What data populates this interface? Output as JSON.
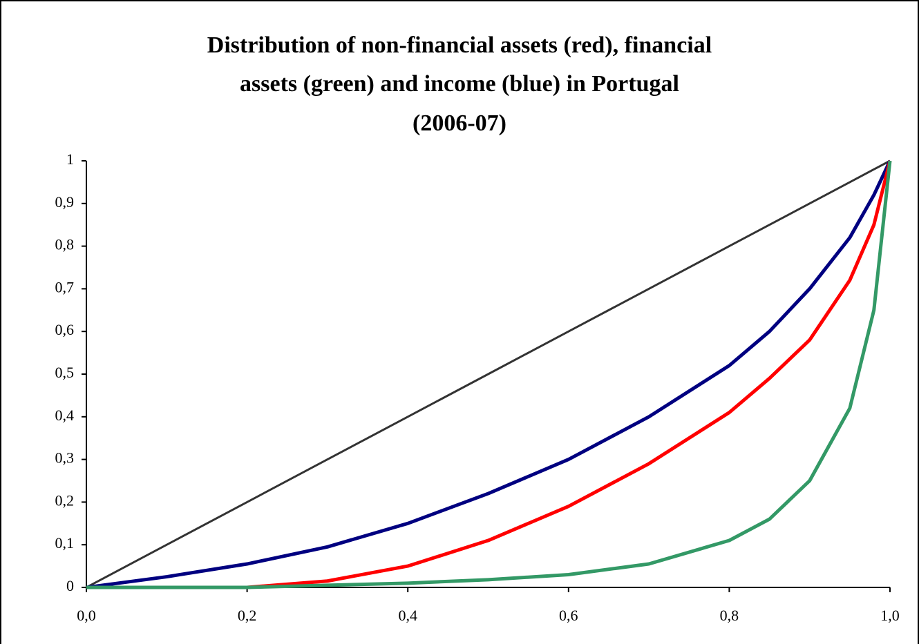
{
  "chart_data": {
    "type": "line",
    "title": [
      "Distribution of non-financial assets (red), financial",
      "assets (green) and income (blue) in Portugal",
      "(2006-07)"
    ],
    "x": [
      0,
      0.1,
      0.2,
      0.3,
      0.4,
      0.5,
      0.6,
      0.7,
      0.8,
      0.85,
      0.9,
      0.95,
      0.98,
      1.0
    ],
    "series": [
      {
        "color": "#333333",
        "values": [
          0,
          0.1,
          0.2,
          0.3,
          0.4,
          0.5,
          0.6,
          0.7,
          0.8,
          0.85,
          0.9,
          0.95,
          0.98,
          1.0
        ]
      },
      {
        "color": "#000080",
        "values": [
          0,
          0.025,
          0.055,
          0.095,
          0.15,
          0.22,
          0.3,
          0.4,
          0.52,
          0.6,
          0.7,
          0.82,
          0.92,
          1.0
        ]
      },
      {
        "color": "#ff0000",
        "values": [
          0,
          0,
          0,
          0.015,
          0.05,
          0.11,
          0.19,
          0.29,
          0.41,
          0.49,
          0.58,
          0.72,
          0.85,
          1.0
        ]
      },
      {
        "color": "#339966",
        "values": [
          0,
          0,
          0,
          0.005,
          0.01,
          0.018,
          0.03,
          0.055,
          0.11,
          0.16,
          0.25,
          0.42,
          0.65,
          1.0
        ]
      }
    ],
    "xlim": [
      0,
      1
    ],
    "ylim": [
      0,
      1
    ],
    "xticks": [
      {
        "value": 0,
        "label": "0,0"
      },
      {
        "value": 0.2,
        "label": "0,2"
      },
      {
        "value": 0.4,
        "label": "0,4"
      },
      {
        "value": 0.6,
        "label": "0,6"
      },
      {
        "value": 0.8,
        "label": "0,8"
      },
      {
        "value": 1,
        "label": "1,0"
      }
    ],
    "yticks": [
      0,
      {
        "value": 0.1,
        "label": "0,1"
      },
      {
        "value": 0.2,
        "label": "0,2"
      },
      {
        "value": 0.3,
        "label": "0,3"
      },
      {
        "value": 0.4,
        "label": "0,4"
      },
      {
        "value": 0.5,
        "label": "0,5"
      },
      {
        "value": 0.6,
        "label": "0,6"
      },
      {
        "value": 0.7,
        "label": "0,7"
      },
      {
        "value": 0.8,
        "label": "0,8"
      },
      {
        "value": 0.9,
        "label": "0,9"
      },
      1
    ],
    "grid": false
  }
}
